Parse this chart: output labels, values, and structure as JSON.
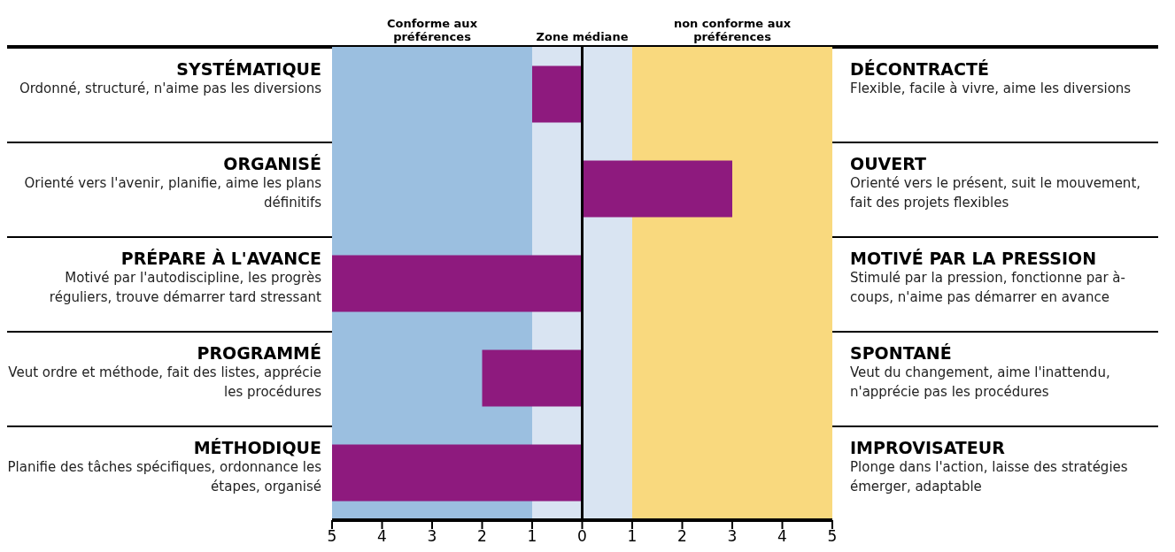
{
  "chart_data": {
    "type": "bar",
    "orientation": "horizontal",
    "tick_labels": "x",
    "categories": [
      "SYSTÉMATIQUE\nOrdonné, structuré, n'aime pas les diversions",
      "ORGANISÉ\nOrienté vers l'avenir, planifie, aime les plans définitifs",
      "PRÉPARE À L'AVANCE\nMotivé par l'autodiscipline, les progrès réguliers, trouve démarrer tard stressant",
      "PROGRAMMÉ\nVeut ordre et méthode, fait des listes, apprécie les procédures",
      "MÉTHODIQUE\nPlanifie des tâches spécifiques, ordonnance les étapes, organisé"
    ],
    "y2_categories": [
      "DÉCONTRACTÉ\nFlexible, facile à vivre, aime les diversions",
      "OUVERT\nOrienté vers le présent, suit le mouvement, fait des projets flexibles",
      "MOTIVÉ PAR LA PRESSION\nStimulé par la pression, fonctionne par à-coups, n'aime pas démarrer en avance",
      "SPONTANÉ\nVeut du changement, aime l'inattendu, n'apprécie pas les procédures",
      "IMPROVISATEUR\nPlonge dans l'action, laisse des stratégies émerger, adaptable"
    ],
    "values": [
      -1,
      3,
      -5,
      -2,
      -5
    ],
    "color": "#8e1a7e",
    "xlim": [
      -5,
      5
    ],
    "xticks": [
      {
        "value": -5,
        "label": "5"
      },
      {
        "value": -4,
        "label": "4"
      },
      {
        "value": -3,
        "label": "3"
      },
      {
        "value": -2,
        "label": "2"
      },
      {
        "value": -1,
        "label": "1"
      },
      0,
      1,
      2,
      3,
      4,
      5
    ],
    "bands": [
      {
        "axis": "x",
        "from": -5,
        "to": -1,
        "label": "Conforme aux préférences",
        "color": "#9bbfe0"
      },
      {
        "axis": "x",
        "from": -1,
        "to": 1,
        "label": "Zone médiane",
        "color": "#d9e4f2"
      },
      {
        "axis": "x",
        "from": 1,
        "to": 5,
        "label": "non conforme aux préférences",
        "color": "#f9d97e"
      }
    ],
    "ref_lines": [
      {
        "axis": "x",
        "value": 0,
        "color": "#000000"
      }
    ]
  }
}
